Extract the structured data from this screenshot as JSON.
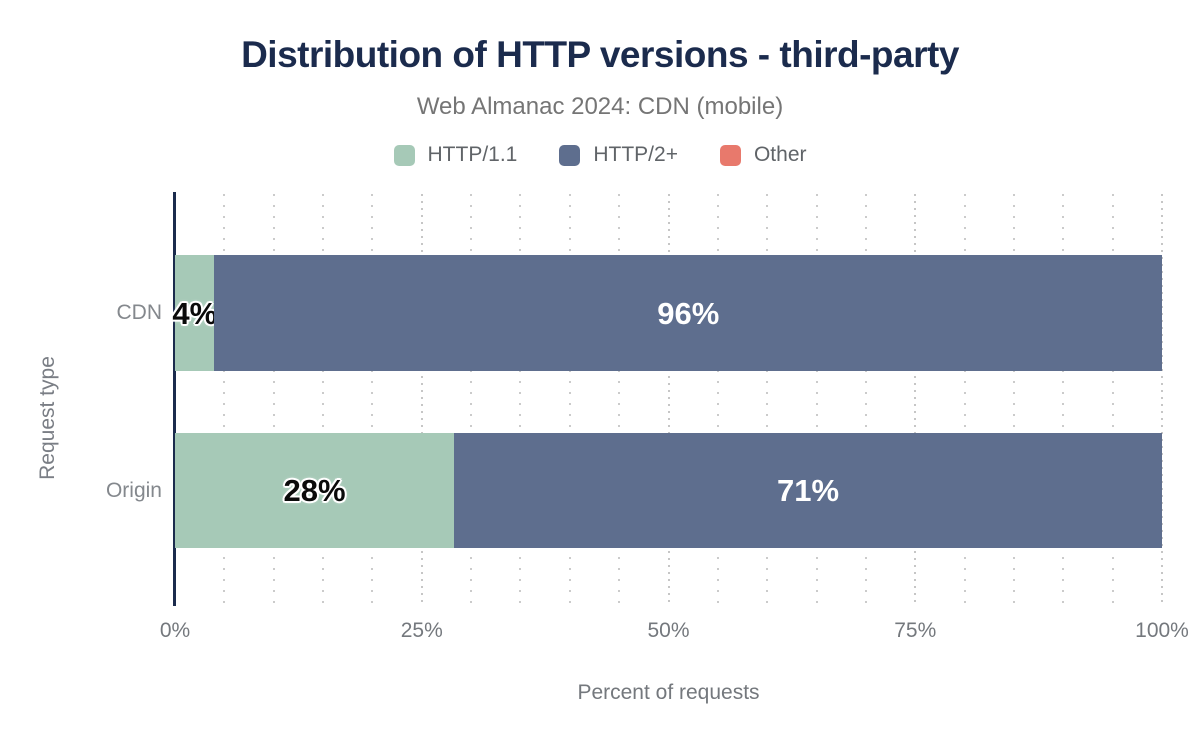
{
  "chart_data": {
    "type": "bar",
    "orientation": "horizontal",
    "stacked": true,
    "title": "Distribution of HTTP versions - third-party",
    "subtitle": "Web Almanac 2024: CDN (mobile)",
    "categories": [
      "CDN",
      "Origin"
    ],
    "series": [
      {
        "name": "HTTP/1.1",
        "color": "#a6c9b7",
        "text_color": "#0a0a0a",
        "values": [
          4,
          28
        ]
      },
      {
        "name": "HTTP/2+",
        "color": "#5e6e8e",
        "text_color": "#ffffff",
        "values": [
          96,
          71
        ]
      },
      {
        "name": "Other",
        "color": "#e8796c",
        "text_color": "#ffffff",
        "values": [
          0,
          0
        ]
      }
    ],
    "value_label_format": "{value}%",
    "xlabel": "Percent of requests",
    "ylabel": "Request type",
    "xlim": [
      0,
      100
    ],
    "xticks": [
      {
        "value": 0,
        "label": "0%"
      },
      {
        "value": 25,
        "label": "25%"
      },
      {
        "value": 50,
        "label": "50%"
      },
      {
        "value": 75,
        "label": "75%"
      },
      {
        "value": 100,
        "label": "100%"
      }
    ],
    "grid": {
      "visible": true,
      "style": "dotted-vertical",
      "minor_step": 5,
      "major_step": 25
    },
    "legend_position": "top"
  },
  "legend": [
    {
      "label": "HTTP/1.1",
      "color": "#a6c9b7"
    },
    {
      "label": "HTTP/2+",
      "color": "#5e6e8e"
    },
    {
      "label": "Other",
      "color": "#e8796c"
    }
  ],
  "colors": {
    "title_text": "#1b2b4d",
    "subtitle_text": "#757575",
    "axis_line": "#1b2b4d",
    "tick_text": "#74787d",
    "category_text": "#84888d",
    "legend_text": "#606468",
    "grid_dots": "#cbcbcb",
    "background": "#ffffff"
  }
}
